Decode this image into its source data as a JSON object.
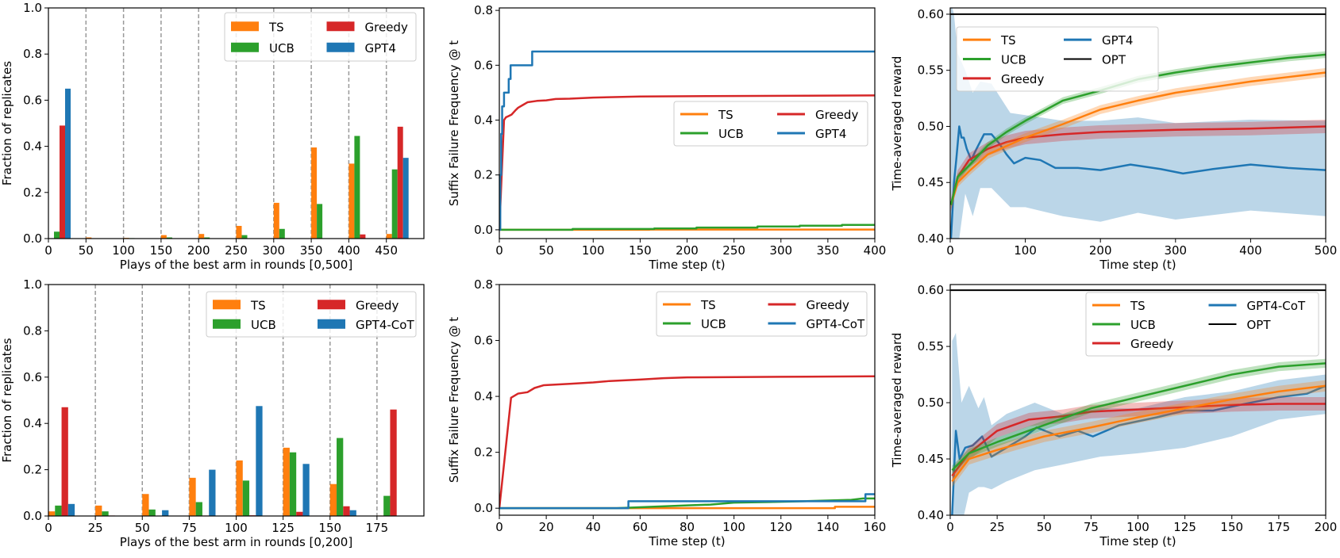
{
  "colors": {
    "TS": "#ff7f0e",
    "UCB": "#2ca02c",
    "Greedy": "#d62728",
    "GPT4": "#1f77b4",
    "GPT4-CoT": "#1f77b4",
    "OPT": "#000000"
  },
  "chart_data": [
    {
      "type": "bar",
      "xlabel": "Plays of the best arm in rounds [0,500]",
      "ylabel": "Fraction of replicates",
      "xlim": [
        0,
        500
      ],
      "ylim": [
        0,
        1.0
      ],
      "xticks": [
        "0",
        "50",
        "100",
        "150",
        "200",
        "250",
        "300",
        "350",
        "400",
        "450"
      ],
      "yticks": [
        "0.0",
        "0.2",
        "0.4",
        "0.6",
        "0.8",
        "1.0"
      ],
      "bin_starts": [
        0,
        50,
        100,
        150,
        200,
        250,
        300,
        350,
        400,
        450
      ],
      "bar_width": 7.4,
      "legend": [
        "TS",
        "UCB",
        "Greedy",
        "GPT4"
      ],
      "series": [
        {
          "name": "TS",
          "values": [
            0,
            0.005,
            0.003,
            0.015,
            0.02,
            0.055,
            0.155,
            0.395,
            0.325,
            0.02
          ]
        },
        {
          "name": "UCB",
          "values": [
            0.03,
            0,
            0.002,
            0.005,
            0.005,
            0.015,
            0.042,
            0.15,
            0.445,
            0.3
          ]
        },
        {
          "name": "Greedy",
          "values": [
            0.49,
            0,
            0,
            0,
            0,
            0,
            0.002,
            0,
            0.018,
            0.485
          ]
        },
        {
          "name": "GPT4",
          "values": [
            0.65,
            0,
            0,
            0,
            0,
            0,
            0,
            0,
            0,
            0.35
          ]
        }
      ]
    },
    {
      "type": "line",
      "xlabel": "Time step (t)",
      "ylabel": "Suffix Failure Frequency @ t",
      "xlim": [
        0,
        400
      ],
      "ylim": [
        -0.032,
        0.809
      ],
      "xticks": [
        "0",
        "50",
        "100",
        "150",
        "200",
        "250",
        "300",
        "350",
        "400"
      ],
      "yticks": [
        "0.0",
        "0.2",
        "0.4",
        "0.6",
        "0.8"
      ],
      "legend": [
        "TS",
        "UCB",
        "Greedy",
        "GPT4"
      ],
      "series": [
        {
          "name": "TS",
          "step": true,
          "x": [
            0,
            160,
            400
          ],
          "y": [
            0,
            0.001,
            0.002
          ]
        },
        {
          "name": "UCB",
          "step": true,
          "x": [
            0,
            78,
            165,
            210,
            275,
            320,
            365,
            400
          ],
          "y": [
            0,
            0.003,
            0.005,
            0.008,
            0.012,
            0.015,
            0.018,
            0.018
          ]
        },
        {
          "name": "Greedy",
          "x": [
            0,
            5,
            7,
            10,
            13,
            17,
            20,
            25,
            30,
            40,
            50,
            60,
            75,
            100,
            150,
            250,
            400
          ],
          "y": [
            0,
            0.4,
            0.41,
            0.415,
            0.42,
            0.435,
            0.445,
            0.455,
            0.465,
            0.47,
            0.472,
            0.477,
            0.478,
            0.482,
            0.486,
            0.488,
            0.49
          ]
        },
        {
          "name": "GPT4",
          "step": true,
          "x": [
            0,
            1,
            2,
            3,
            5,
            8,
            10,
            12,
            35,
            400
          ],
          "y": [
            0,
            0.2,
            0.35,
            0.45,
            0.5,
            0.5,
            0.55,
            0.6,
            0.65,
            0.65
          ]
        }
      ]
    },
    {
      "type": "line",
      "xlabel": "Time step (t)",
      "ylabel": "Time-averaged reward",
      "xlim": [
        0,
        500
      ],
      "ylim": [
        0.4,
        0.6056
      ],
      "xticks": [
        "0",
        "100",
        "200",
        "300",
        "400",
        "500"
      ],
      "yticks": [
        "0.40",
        "0.45",
        "0.50",
        "0.55",
        "0.60"
      ],
      "legend": [
        "TS",
        "UCB",
        "Greedy",
        "GPT4",
        "OPT"
      ],
      "series": [
        {
          "name": "GPT4",
          "x": [
            1,
            5,
            8,
            12,
            15,
            18,
            22,
            28,
            35,
            45,
            55,
            65,
            75,
            85,
            100,
            120,
            140,
            170,
            200,
            240,
            280,
            310,
            350,
            400,
            450,
            500
          ],
          "y": [
            0.4,
            0.45,
            0.47,
            0.5,
            0.49,
            0.49,
            0.48,
            0.47,
            0.48,
            0.493,
            0.493,
            0.485,
            0.475,
            0.467,
            0.472,
            0.47,
            0.463,
            0.463,
            0.461,
            0.466,
            0.462,
            0.458,
            0.462,
            0.466,
            0.463,
            0.461
          ],
          "band": {
            "x": [
              1,
              5,
              10,
              20,
              30,
              40,
              55,
              80,
              100,
              150,
              200,
              250,
              300,
              400,
              500
            ],
            "hi": [
              0.61,
              0.6,
              0.565,
              0.55,
              0.53,
              0.54,
              0.538,
              0.512,
              0.51,
              0.505,
              0.505,
              0.508,
              0.503,
              0.506,
              0.505
            ],
            "lo": [
              0.39,
              0.38,
              0.39,
              0.44,
              0.42,
              0.445,
              0.445,
              0.428,
              0.428,
              0.42,
              0.415,
              0.423,
              0.417,
              0.425,
              0.42
            ]
          }
        },
        {
          "name": "Greedy",
          "x": [
            1,
            10,
            25,
            50,
            75,
            100,
            150,
            200,
            300,
            400,
            500
          ],
          "y": [
            0.43,
            0.455,
            0.47,
            0.48,
            0.486,
            0.49,
            0.493,
            0.495,
            0.497,
            0.498,
            0.5
          ],
          "halfwidth": 0.006
        },
        {
          "name": "TS",
          "x": [
            1,
            10,
            25,
            50,
            100,
            150,
            200,
            250,
            300,
            350,
            400,
            450,
            500
          ],
          "y": [
            0.43,
            0.45,
            0.46,
            0.475,
            0.49,
            0.502,
            0.515,
            0.523,
            0.53,
            0.535,
            0.54,
            0.544,
            0.548
          ],
          "halfwidth": 0.004
        },
        {
          "name": "UCB",
          "x": [
            1,
            10,
            25,
            50,
            75,
            100,
            150,
            200,
            250,
            300,
            350,
            400,
            450,
            500
          ],
          "y": [
            0.43,
            0.455,
            0.465,
            0.483,
            0.495,
            0.505,
            0.523,
            0.532,
            0.542,
            0.548,
            0.553,
            0.557,
            0.561,
            0.564
          ],
          "halfwidth": 0.003
        },
        {
          "name": "OPT",
          "x": [
            0,
            500
          ],
          "y": [
            0.6,
            0.6
          ]
        }
      ]
    },
    {
      "type": "bar",
      "xlabel": "Plays of the best arm in rounds [0,200]",
      "ylabel": "Fraction of replicates",
      "xlim": [
        0,
        200
      ],
      "ylim": [
        0,
        1.0
      ],
      "xticks": [
        "0",
        "25",
        "50",
        "75",
        "100",
        "125",
        "150",
        "175"
      ],
      "yticks": [
        "0.0",
        "0.2",
        "0.4",
        "0.6",
        "0.8",
        "1.0"
      ],
      "bin_starts": [
        0,
        25,
        50,
        75,
        100,
        125,
        150,
        175
      ],
      "bar_width": 3.5,
      "legend": [
        "TS",
        "UCB",
        "Greedy",
        "GPT4-CoT"
      ],
      "series": [
        {
          "name": "TS",
          "values": [
            0.02,
            0.045,
            0.095,
            0.165,
            0.24,
            0.295,
            0.138,
            0.002
          ]
        },
        {
          "name": "UCB",
          "values": [
            0.045,
            0.02,
            0.028,
            0.06,
            0.153,
            0.275,
            0.337,
            0.087
          ]
        },
        {
          "name": "Greedy",
          "values": [
            0.47,
            0.002,
            0,
            0.002,
            0.003,
            0.018,
            0.042,
            0.46
          ]
        },
        {
          "name": "GPT4-CoT",
          "values": [
            0.052,
            0,
            0.025,
            0.2,
            0.475,
            0.225,
            0.025,
            0
          ]
        }
      ]
    },
    {
      "type": "line",
      "xlabel": "Time step (t)",
      "ylabel": "Suffix Failure Frequency @ t",
      "xlim": [
        0,
        160
      ],
      "ylim": [
        -0.025,
        0.8
      ],
      "xticks": [
        "0",
        "20",
        "40",
        "60",
        "80",
        "100",
        "120",
        "140",
        "160"
      ],
      "yticks": [
        "0.0",
        "0.2",
        "0.4",
        "0.6",
        "0.8"
      ],
      "legend": [
        "TS",
        "UCB",
        "Greedy",
        "GPT4-CoT"
      ],
      "series": [
        {
          "name": "TS",
          "step": true,
          "x": [
            0,
            143,
            160
          ],
          "y": [
            0,
            0.005,
            0.005
          ]
        },
        {
          "name": "UCB",
          "x": [
            0,
            50,
            65,
            80,
            90,
            100,
            115,
            130,
            150,
            155,
            160
          ],
          "y": [
            0,
            0,
            0.005,
            0.01,
            0.013,
            0.02,
            0.022,
            0.025,
            0.03,
            0.035,
            0.035
          ]
        },
        {
          "name": "Greedy",
          "x": [
            0,
            5,
            8,
            12,
            15,
            19,
            30,
            40,
            47,
            60,
            70,
            80,
            120,
            160
          ],
          "y": [
            0,
            0.395,
            0.41,
            0.415,
            0.43,
            0.44,
            0.445,
            0.45,
            0.455,
            0.46,
            0.465,
            0.468,
            0.47,
            0.472
          ]
        },
        {
          "name": "GPT4-CoT",
          "step": true,
          "x": [
            0,
            55,
            156,
            160
          ],
          "y": [
            0,
            0.025,
            0.05,
            0.05
          ]
        }
      ]
    },
    {
      "type": "line",
      "xlabel": "Time step (t)",
      "ylabel": "Time-averaged reward",
      "xlim": [
        0,
        200
      ],
      "ylim": [
        0.4,
        0.605
      ],
      "xticks": [
        "0",
        "25",
        "50",
        "75",
        "100",
        "125",
        "150",
        "175",
        "200"
      ],
      "yticks": [
        "0.40",
        "0.45",
        "0.50",
        "0.55",
        "0.60"
      ],
      "legend": [
        "TS",
        "UCB",
        "Greedy",
        "GPT4-CoT",
        "OPT"
      ],
      "series": [
        {
          "name": "GPT4-CoT",
          "x": [
            1,
            3,
            5,
            8,
            12,
            17,
            22,
            30,
            40,
            46,
            58,
            68,
            76,
            90,
            110,
            125,
            140,
            160,
            175,
            190,
            200
          ],
          "y": [
            0.4,
            0.475,
            0.45,
            0.46,
            0.462,
            0.47,
            0.452,
            0.46,
            0.47,
            0.478,
            0.47,
            0.475,
            0.47,
            0.48,
            0.487,
            0.493,
            0.493,
            0.5,
            0.505,
            0.508,
            0.515
          ],
          "band": {
            "x": [
              1,
              3,
              6,
              10,
              15,
              18,
              22,
              30,
              45,
              60,
              80,
              100,
              125,
              150,
              175,
              200
            ],
            "hi": [
              0.555,
              0.562,
              0.5,
              0.515,
              0.495,
              0.505,
              0.48,
              0.49,
              0.5,
              0.49,
              0.495,
              0.495,
              0.505,
              0.51,
              0.52,
              0.525
            ],
            "lo": [
              0.38,
              0.385,
              0.39,
              0.42,
              0.425,
              0.425,
              0.423,
              0.43,
              0.44,
              0.445,
              0.452,
              0.455,
              0.46,
              0.47,
              0.485,
              0.49
            ]
          }
        },
        {
          "name": "Greedy",
          "x": [
            1,
            10,
            25,
            42,
            60,
            75,
            100,
            125,
            150,
            175,
            200
          ],
          "y": [
            0.435,
            0.455,
            0.475,
            0.485,
            0.488,
            0.492,
            0.494,
            0.496,
            0.498,
            0.499,
            0.499
          ],
          "halfwidth": 0.006
        },
        {
          "name": "TS",
          "x": [
            1,
            10,
            25,
            50,
            75,
            100,
            125,
            150,
            175,
            200
          ],
          "y": [
            0.43,
            0.45,
            0.458,
            0.47,
            0.478,
            0.487,
            0.495,
            0.503,
            0.51,
            0.515
          ],
          "halfwidth": 0.005
        },
        {
          "name": "UCB",
          "x": [
            1,
            10,
            25,
            50,
            75,
            100,
            125,
            150,
            175,
            200
          ],
          "y": [
            0.44,
            0.455,
            0.465,
            0.48,
            0.495,
            0.505,
            0.515,
            0.525,
            0.532,
            0.535
          ],
          "halfwidth": 0.004
        },
        {
          "name": "OPT",
          "x": [
            0,
            200
          ],
          "y": [
            0.6,
            0.6
          ]
        }
      ]
    }
  ]
}
